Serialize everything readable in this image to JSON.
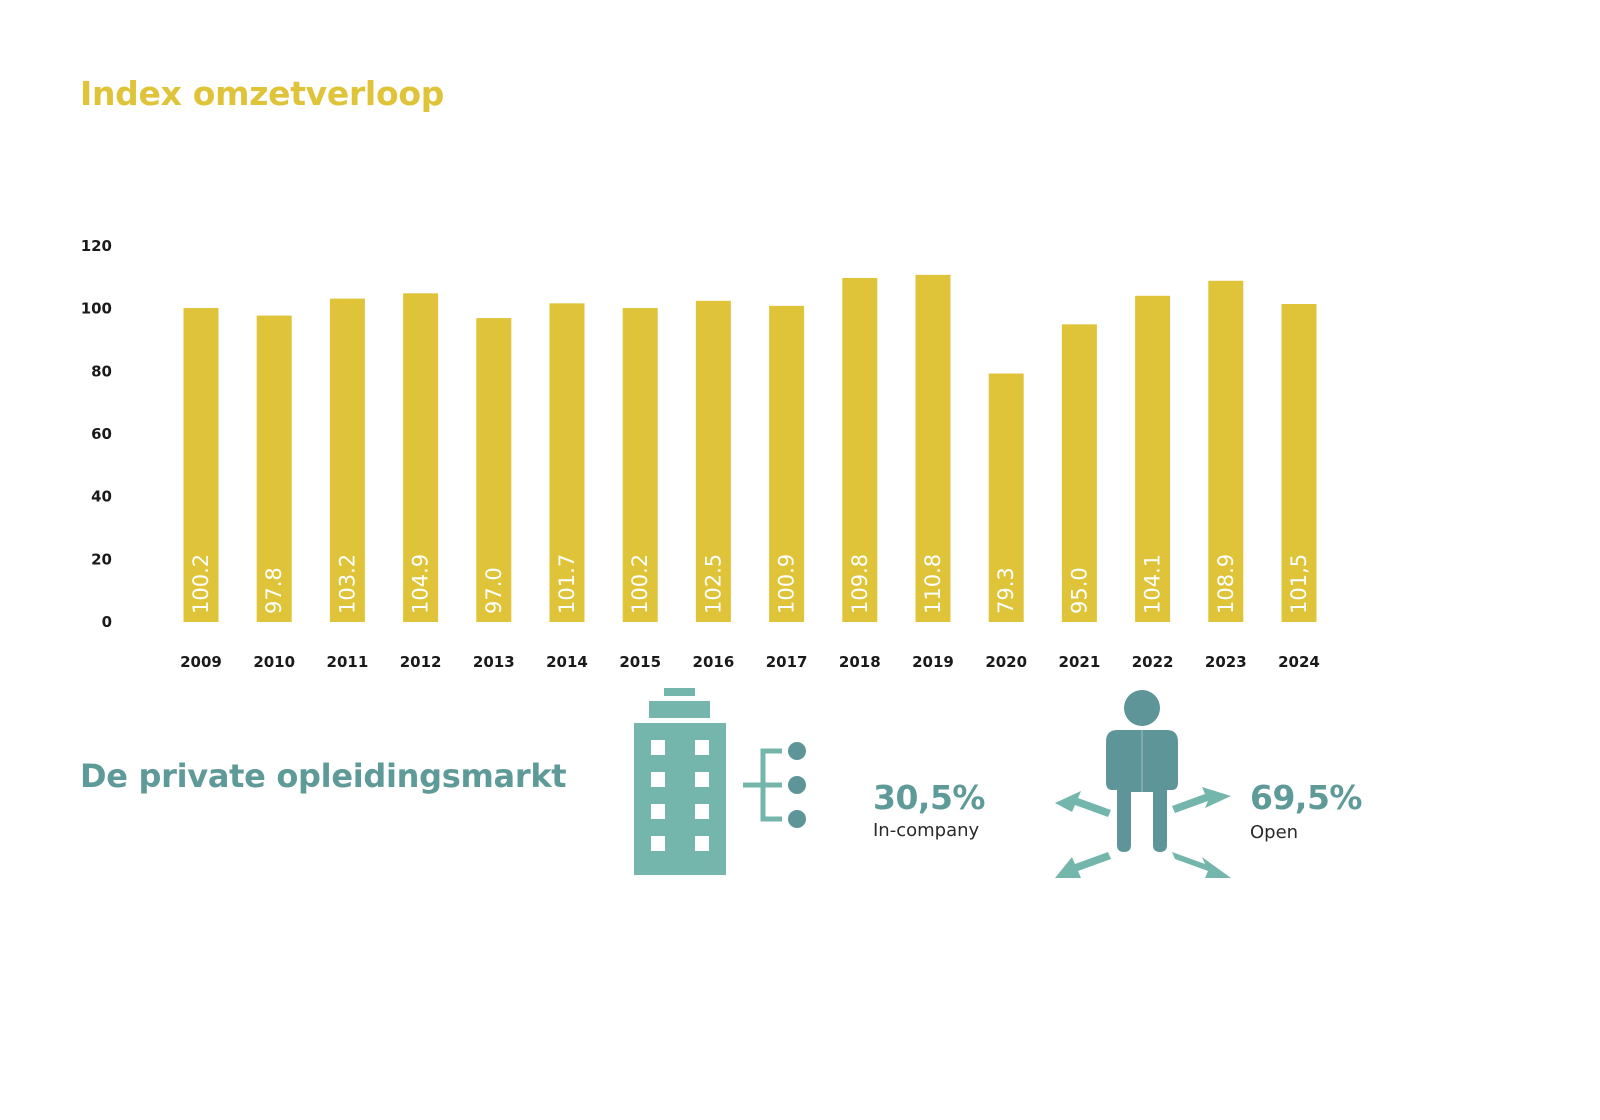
{
  "colors": {
    "accent_yellow": "#dfc43a",
    "accent_teal": "#5e9a98",
    "icon_teal_light": "#74b6ac",
    "icon_teal_dark": "#5e9598"
  },
  "chart_data": {
    "type": "bar",
    "title": "Index omzetverloop",
    "categories": [
      "2009",
      "2010",
      "2011",
      "2012",
      "2013",
      "2014",
      "2015",
      "2016",
      "2017",
      "2018",
      "2019",
      "2020",
      "2021",
      "2022",
      "2023",
      "2024"
    ],
    "values": [
      100.2,
      97.8,
      103.2,
      104.9,
      97.0,
      101.7,
      100.2,
      102.5,
      100.9,
      109.8,
      110.8,
      79.3,
      95.0,
      104.1,
      108.9,
      101.5
    ],
    "data_labels": [
      "100.2",
      "97.8",
      "103.2",
      "104.9",
      "97.0",
      "101.7",
      "100.2",
      "102.5",
      "100.9",
      "109.8",
      "110.8",
      "79.3",
      "95.0",
      "104.1",
      "108.9",
      "101,5"
    ],
    "y_ticks": [
      "0",
      "20",
      "40",
      "60",
      "80",
      "100",
      "120"
    ],
    "ylim": [
      0,
      120
    ],
    "xlabel": "",
    "ylabel": "",
    "grid": false
  },
  "section2": {
    "title": "De private opleidingsmarkt",
    "incompany": {
      "value": "30,5%",
      "label": "In-company",
      "icon": "office-building-icon"
    },
    "open": {
      "value": "69,5%",
      "label": "Open",
      "icon": "person-arrows-icon"
    }
  }
}
